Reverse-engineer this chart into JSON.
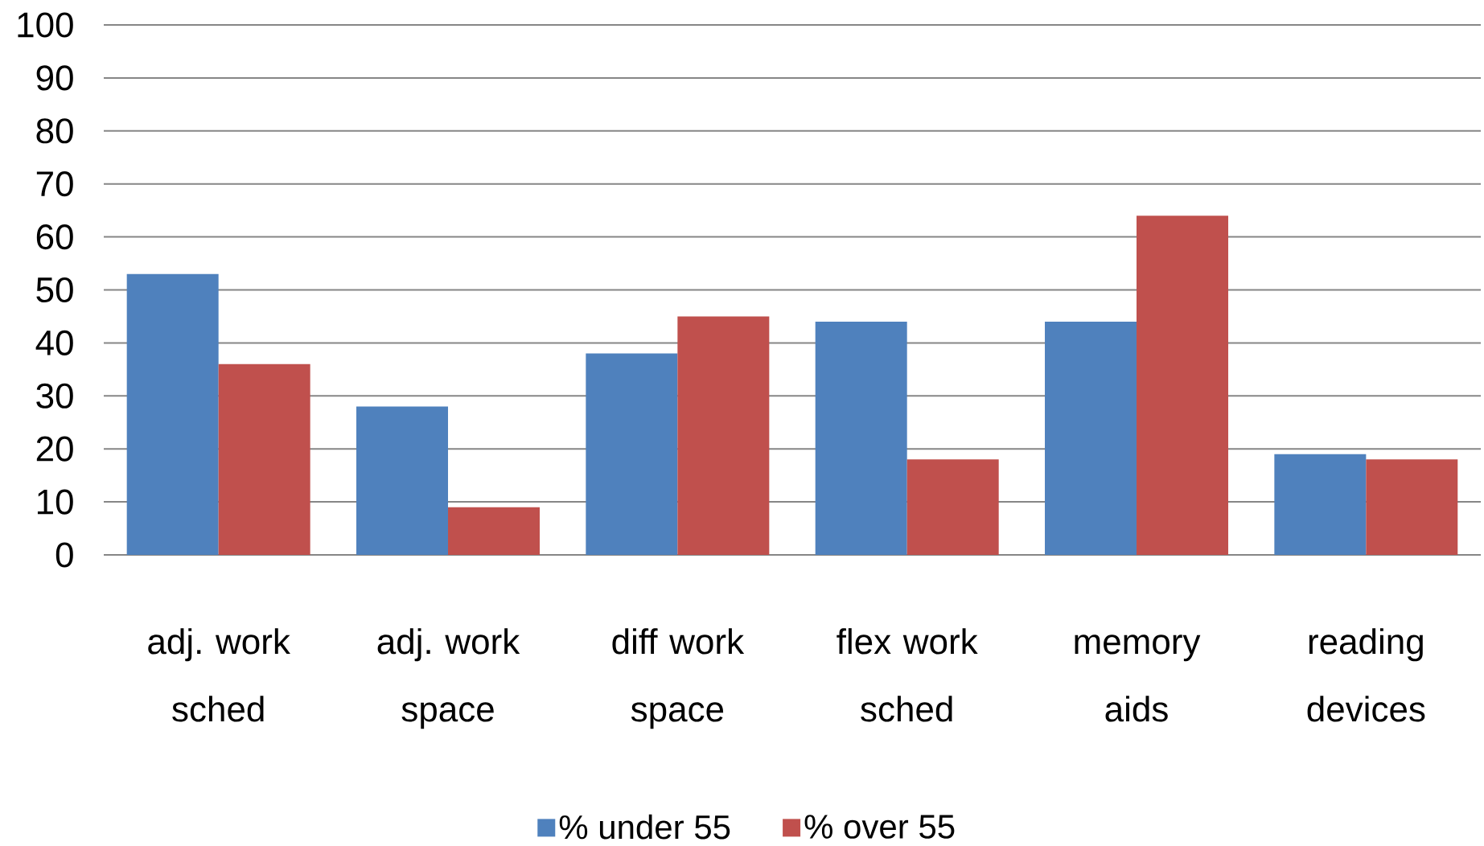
{
  "chart_data": {
    "type": "bar",
    "categories": [
      "adj. work sched",
      "adj. work space",
      "diff work space",
      "flex work sched",
      "memory aids",
      "reading devices"
    ],
    "series": [
      {
        "name": "% under 55",
        "color": "#4f81bd",
        "values": [
          53,
          28,
          38,
          44,
          44,
          19
        ]
      },
      {
        "name": "% over 55",
        "color": "#c0504d",
        "values": [
          36,
          9,
          45,
          18,
          64,
          18
        ]
      }
    ],
    "ylim": [
      0,
      100
    ],
    "yticks": [
      0,
      10,
      20,
      30,
      40,
      50,
      60,
      70,
      80,
      90,
      100
    ],
    "grid": "y",
    "legend": "bottom"
  }
}
